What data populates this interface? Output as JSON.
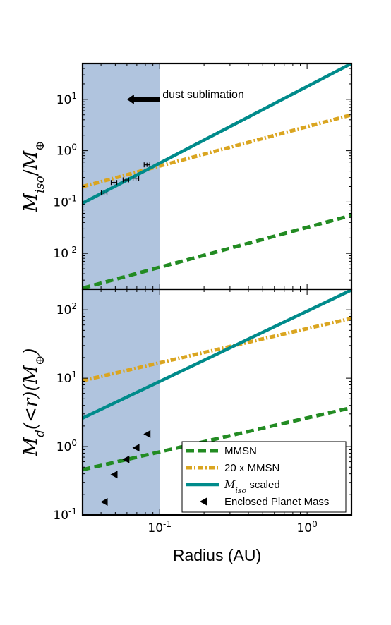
{
  "chart_data": [
    {
      "type": "line",
      "panel": "top",
      "xscale": "log",
      "yscale": "log",
      "xlim": [
        0.03,
        2.0
      ],
      "ylim": [
        0.002,
        50
      ],
      "xlabel": "",
      "ylabel": "M_iso / M_⊕",
      "ylabel_parts": {
        "main": "M",
        "sub": "iso",
        "sep": "/",
        "main2": "M",
        "sub2": "⊕"
      },
      "yticks": [
        {
          "value": 0.01,
          "base": "10",
          "exp": "-2"
        },
        {
          "value": 0.1,
          "base": "10",
          "exp": "-1"
        },
        {
          "value": 1,
          "base": "10",
          "exp": "0"
        },
        {
          "value": 10,
          "base": "10",
          "exp": "1"
        }
      ],
      "shaded_region": {
        "x": [
          0.03,
          0.1
        ],
        "color": "#b0c4de"
      },
      "annotation": {
        "text": "dust sublimation",
        "arrow": "left",
        "x_tail": 0.1,
        "x_head": 0.06,
        "y": 10
      },
      "series": [
        {
          "key": "mmsn",
          "x": [
            0.03,
            2.0
          ],
          "y": [
            0.0021,
            0.055
          ],
          "color": "#228b22",
          "style": "dashed"
        },
        {
          "key": "mmsn20",
          "x": [
            0.03,
            2.0
          ],
          "y": [
            0.2,
            5.0
          ],
          "color": "#daa520",
          "style": "dashdot"
        },
        {
          "key": "miso",
          "x": [
            0.03,
            2.0
          ],
          "y": [
            0.095,
            50
          ],
          "color": "#008b8b",
          "style": "solid"
        }
      ],
      "points": {
        "marker": "errorbar",
        "x": [
          0.042,
          0.049,
          0.059,
          0.069,
          0.082
        ],
        "y": [
          0.15,
          0.24,
          0.27,
          0.29,
          0.53
        ]
      }
    },
    {
      "type": "line",
      "panel": "bottom",
      "xscale": "log",
      "yscale": "log",
      "xlim": [
        0.03,
        2.0
      ],
      "ylim": [
        0.1,
        200
      ],
      "xlabel": "Radius (AU)",
      "ylabel": "M_d(<r)(M_⊕)",
      "ylabel_parts": {
        "main": "M",
        "sub": "d",
        "rest": "(<r)(M",
        "sub2": "⊕",
        "close": ")"
      },
      "xticks": [
        {
          "value": 0.1,
          "base": "10",
          "exp": "-1"
        },
        {
          "value": 1,
          "base": "10",
          "exp": "0"
        }
      ],
      "yticks": [
        {
          "value": 0.1,
          "base": "10",
          "exp": "-1"
        },
        {
          "value": 1,
          "base": "10",
          "exp": "0"
        },
        {
          "value": 10,
          "base": "10",
          "exp": "1"
        },
        {
          "value": 100,
          "base": "10",
          "exp": "2"
        }
      ],
      "shaded_region": {
        "x": [
          0.03,
          0.1
        ],
        "color": "#b0c4de"
      },
      "series": [
        {
          "key": "mmsn",
          "x": [
            0.03,
            2.0
          ],
          "y": [
            0.46,
            3.7
          ],
          "color": "#228b22",
          "style": "dashed"
        },
        {
          "key": "mmsn20",
          "x": [
            0.03,
            2.0
          ],
          "y": [
            9.2,
            75
          ],
          "color": "#daa520",
          "style": "dashdot"
        },
        {
          "key": "miso",
          "x": [
            0.03,
            2.0
          ],
          "y": [
            2.6,
            195
          ],
          "color": "#008b8b",
          "style": "solid"
        }
      ],
      "points": {
        "marker": "triangle-left",
        "x": [
          0.042,
          0.049,
          0.059,
          0.069,
          0.082
        ],
        "y": [
          0.155,
          0.39,
          0.65,
          0.96,
          1.52
        ]
      },
      "legend": {
        "placement": "lower-right",
        "entries": [
          {
            "key": "mmsn",
            "text": "MMSN",
            "color": "#228b22",
            "style": "dashed"
          },
          {
            "key": "mmsn20",
            "text": "20 x MMSN",
            "color": "#daa520",
            "style": "dashdot"
          },
          {
            "key": "miso",
            "math_main": "M",
            "math_sub": "iso",
            "text": " scaled",
            "color": "#008b8b",
            "style": "solid"
          },
          {
            "key": "planets",
            "text": "Enclosed Planet Mass",
            "color": "#000000",
            "style": "marker"
          }
        ]
      }
    }
  ]
}
